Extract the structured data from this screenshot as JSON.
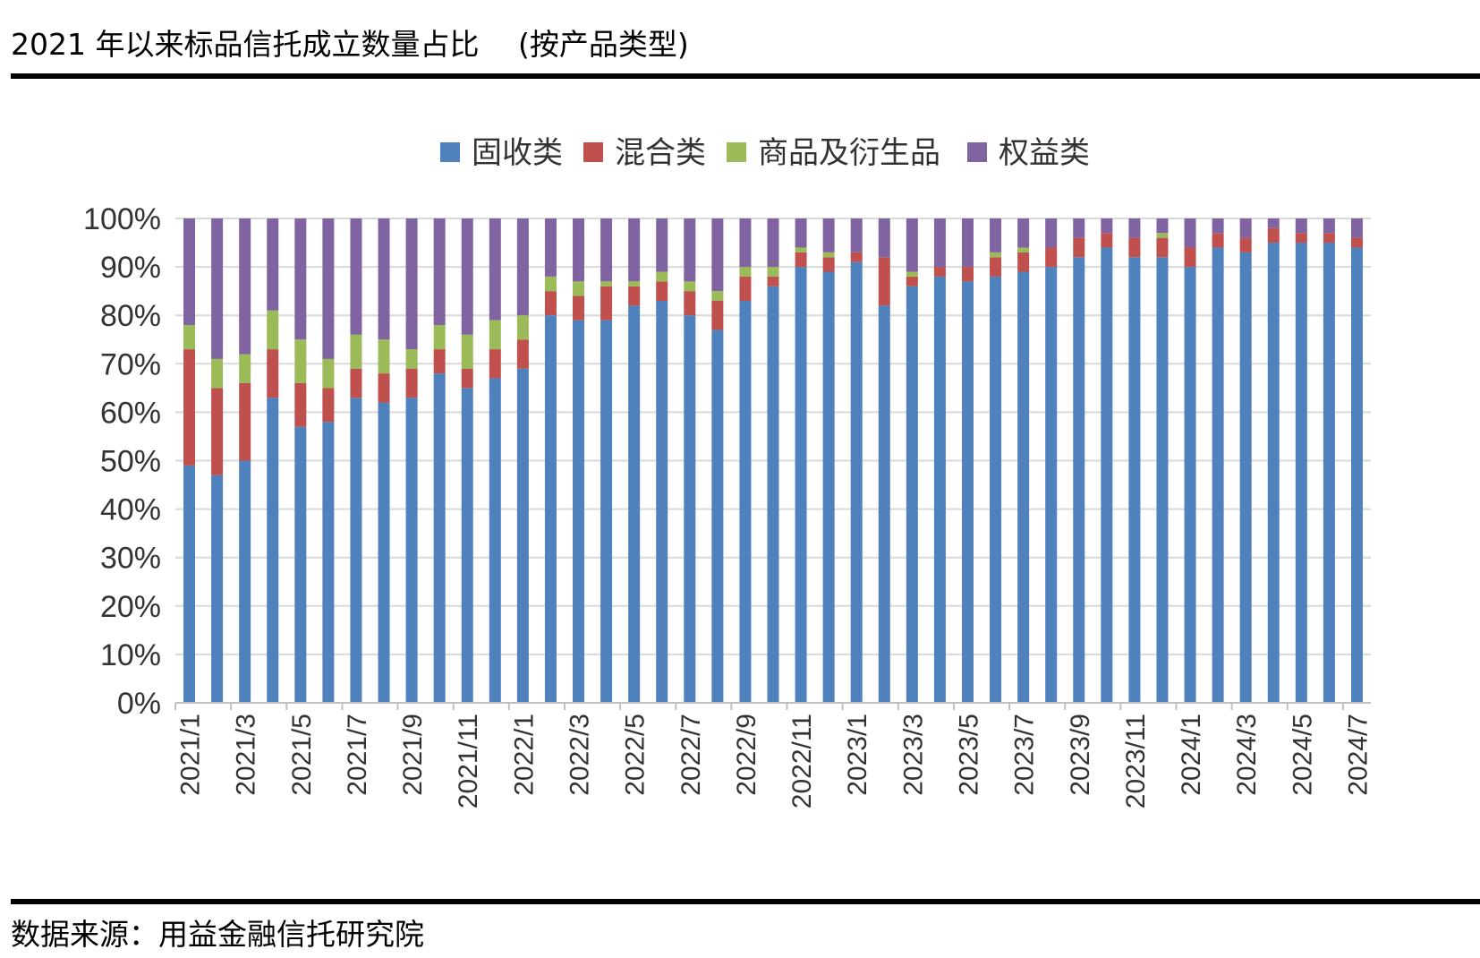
{
  "header": {
    "title": "2021 年以来标品信托成立数量占比　 (按产品类型)"
  },
  "footer": {
    "source": "数据来源：用益金融信托研究院"
  },
  "chart_data": {
    "type": "bar",
    "stacked": true,
    "percent_stacked": true,
    "grid": true,
    "legend_position": "top",
    "ylim": [
      0,
      100
    ],
    "y_ticks": [
      "0%",
      "10%",
      "20%",
      "30%",
      "40%",
      "50%",
      "60%",
      "70%",
      "80%",
      "90%",
      "100%"
    ],
    "categories": [
      "2021/1",
      "2021/2",
      "2021/3",
      "2021/4",
      "2021/5",
      "2021/6",
      "2021/7",
      "2021/8",
      "2021/9",
      "2021/10",
      "2021/11",
      "2021/12",
      "2022/1",
      "2022/2",
      "2022/3",
      "2022/4",
      "2022/5",
      "2022/6",
      "2022/7",
      "2022/8",
      "2022/9",
      "2022/10",
      "2022/11",
      "2022/12",
      "2023/1",
      "2023/2",
      "2023/3",
      "2023/4",
      "2023/5",
      "2023/6",
      "2023/7",
      "2023/8",
      "2023/9",
      "2023/10",
      "2023/11",
      "2023/12",
      "2024/1",
      "2024/2",
      "2024/3",
      "2024/4",
      "2024/5",
      "2024/6",
      "2024/7"
    ],
    "x_tick_labels": [
      "2021/1",
      "2021/3",
      "2021/5",
      "2021/7",
      "2021/9",
      "2021/11",
      "2022/1",
      "2022/3",
      "2022/5",
      "2022/7",
      "2022/9",
      "2022/11",
      "2023/1",
      "2023/3",
      "2023/5",
      "2023/7",
      "2023/9",
      "2023/11",
      "2024/1",
      "2024/3",
      "2024/5",
      "2024/7"
    ],
    "series": [
      {
        "name": "固收类",
        "color": "#4f81bd",
        "values": [
          49,
          47,
          50,
          63,
          57,
          58,
          63,
          62,
          63,
          68,
          65,
          67,
          69,
          80,
          79,
          79,
          82,
          83,
          80,
          77,
          83,
          86,
          90,
          89,
          91,
          82,
          86,
          88,
          87,
          88,
          89,
          90,
          92,
          94,
          92,
          92,
          90,
          94,
          93,
          95,
          95,
          95,
          94
        ]
      },
      {
        "name": "混合类",
        "color": "#c0504d",
        "values": [
          24,
          18,
          16,
          10,
          9,
          7,
          6,
          6,
          6,
          5,
          4,
          6,
          6,
          5,
          5,
          7,
          4,
          4,
          5,
          6,
          5,
          2,
          3,
          3,
          2,
          10,
          2,
          2,
          3,
          4,
          4,
          4,
          4,
          3,
          4,
          4,
          4,
          3,
          3,
          3,
          2,
          2,
          2
        ]
      },
      {
        "name": "商品及衍生品",
        "color": "#9bbb59",
        "values": [
          5,
          6,
          6,
          8,
          9,
          6,
          7,
          7,
          4,
          5,
          7,
          6,
          5,
          3,
          3,
          1,
          1,
          2,
          2,
          2,
          2,
          2,
          1,
          1,
          0,
          0,
          1,
          0,
          0,
          1,
          1,
          0,
          0,
          0,
          0,
          1,
          0,
          0,
          0,
          0,
          0,
          0,
          0
        ]
      },
      {
        "name": "权益类",
        "color": "#8064a2",
        "values": [
          22,
          29,
          28,
          19,
          25,
          29,
          24,
          25,
          27,
          22,
          24,
          21,
          20,
          12,
          13,
          13,
          13,
          11,
          13,
          15,
          10,
          10,
          6,
          7,
          7,
          8,
          11,
          10,
          10,
          7,
          6,
          6,
          4,
          3,
          4,
          3,
          6,
          3,
          4,
          2,
          3,
          3,
          4
        ]
      }
    ]
  }
}
